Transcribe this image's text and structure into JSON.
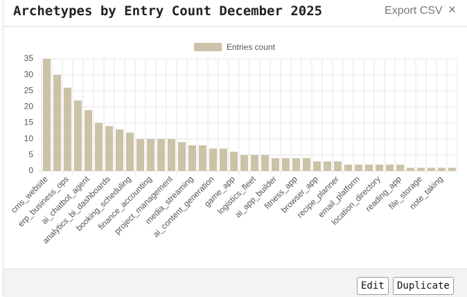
{
  "chart_data": {
    "type": "bar",
    "title": "Archetypes by Entry Count December 2025",
    "categories": [
      "cms_website",
      null,
      "erp_business_ops",
      null,
      "ai_chatbot_agent",
      null,
      "analytics_bi_dashboards",
      null,
      "booking_scheduling",
      null,
      "finance_accounting",
      null,
      "project_management",
      null,
      "media_streaming",
      null,
      "ai_content_generation",
      null,
      "game_app",
      null,
      "logistics_fleet",
      null,
      "ai_app_builder",
      null,
      "fitness_app",
      null,
      "browser_app",
      null,
      "recipe_planner",
      null,
      "email_platform",
      null,
      "location_directory",
      null,
      "reading_app",
      null,
      "file_storage",
      null,
      "note_taking",
      null
    ],
    "series": [
      {
        "name": "Entries count",
        "color": "#cbc2a8",
        "values": [
          35,
          30,
          26,
          22,
          19,
          15,
          14,
          13,
          12,
          10,
          10,
          10,
          10,
          9,
          8,
          8,
          7,
          7,
          6,
          5,
          5,
          5,
          4,
          4,
          4,
          4,
          3,
          3,
          3,
          2,
          2,
          2,
          2,
          2,
          2,
          1,
          1,
          1,
          1,
          1
        ]
      }
    ],
    "ylim": [
      0,
      35
    ],
    "yticks": [
      0,
      5,
      10,
      15,
      20,
      25,
      30,
      35
    ],
    "grid": true,
    "legend": "top"
  },
  "ui": {
    "export": "Export CSV",
    "close": "×",
    "buttons": [
      "Edit",
      "Duplicate"
    ]
  }
}
